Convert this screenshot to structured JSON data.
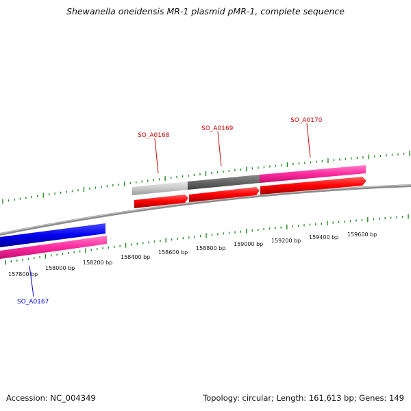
{
  "title": "Shewanella oneidensis MR-1 plasmid pMR-1, complete sequence",
  "footer": {
    "accession": "Accession: NC_004349",
    "summary": "Topology: circular; Length: 161,613 bp; Genes: 149"
  },
  "position_labels": [
    "157800 bp",
    "158000 bp",
    "158200 bp",
    "158400 bp",
    "158600 bp",
    "158800 bp",
    "159000 bp",
    "159200 bp",
    "159400 bp",
    "159600 bp"
  ],
  "genes": [
    {
      "name": "SO_A0167",
      "color": "#0000cc"
    },
    {
      "name": "SO_A0168",
      "color": "#cc0000"
    },
    {
      "name": "SO_A0169",
      "color": "#cc0000"
    },
    {
      "name": "SO_A0170",
      "color": "#cc0000"
    }
  ],
  "colors": {
    "backbone": "#8c8c8c",
    "tick": "#1a8a1a",
    "blue_feature": "#0000ee",
    "pink_feature": "#ff2aa0",
    "red_feature": "#ff0000",
    "light_gray_feature": "#c8c8c8",
    "dark_gray_feature": "#666666"
  }
}
